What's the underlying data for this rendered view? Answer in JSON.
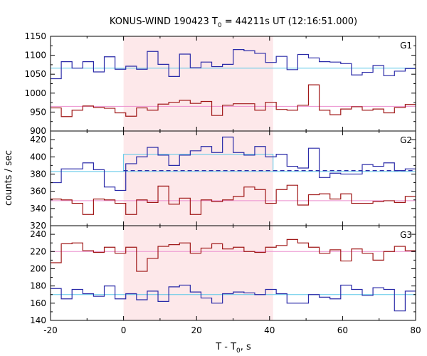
{
  "chart_data": {
    "type": "line",
    "title": "KONUS-WIND 190423 T",
    "title_sub": "0",
    "title_rest": " = 44211s UT (12:16:51.000)",
    "xlabel": "T - T",
    "xlabel_sub": "0",
    "xlabel_rest": ", s",
    "ylabel": "counts / sec",
    "xlim": [
      -20,
      80
    ],
    "x_ticks": [
      -20,
      0,
      20,
      40,
      60,
      80
    ],
    "x_tick_labels": [
      "-20",
      "0",
      "20",
      "40",
      "60",
      "80"
    ],
    "shaded_interval": [
      0,
      40.96
    ],
    "shade_color": "#fde8ea",
    "step": 2.944,
    "grid": false,
    "panels": [
      {
        "name": "G1",
        "ylim": [
          900,
          1150
        ],
        "y_ticks": [
          900,
          950,
          1000,
          1050,
          1100,
          1150
        ],
        "y_tick_labels": [
          "900",
          "950",
          "1000",
          "1050",
          "1100",
          "1150"
        ],
        "series": [
          {
            "color": "#2a2aa8",
            "x_start": -20,
            "baseline": 1066,
            "baseline_color": "#5bc8e8",
            "values": [
              1038,
              1083,
              1066,
              1083,
              1056,
              1096,
              1063,
              1071,
              1063,
              1110,
              1076,
              1044,
              1103,
              1067,
              1082,
              1070,
              1076,
              1115,
              1112,
              1105,
              1081,
              1097,
              1062,
              1102,
              1093,
              1083,
              1082,
              1078,
              1048,
              1055,
              1073,
              1046,
              1058,
              1065,
              1075
            ]
          },
          {
            "color": "#a01818",
            "x_start": -20,
            "baseline": 965,
            "baseline_color": "#ec8fcf",
            "values": [
              961,
              938,
              955,
              966,
              962,
              960,
              948,
              939,
              961,
              955,
              971,
              976,
              981,
              973,
              978,
              941,
              968,
              972,
              972,
              955,
              976,
              957,
              955,
              968,
              1022,
              955,
              943,
              958,
              964,
              955,
              958,
              948,
              962,
              970,
              947
            ]
          }
        ]
      },
      {
        "name": "G2",
        "ylim": [
          320,
          430
        ],
        "y_ticks": [
          320,
          340,
          360,
          380,
          400,
          420
        ],
        "y_tick_labels": [
          "320",
          "340",
          "360",
          "380",
          "400",
          "420"
        ],
        "series": [
          {
            "color": "#2a2aa8",
            "x_start": -20,
            "baseline": 383,
            "baseline_color": "#5bc8e8",
            "interval_mean": 403,
            "interval_mean_color": "#5bc8e8",
            "post_level": 384,
            "values": [
              370,
              386,
              386,
              393,
              385,
              365,
              361,
              392,
              400,
              411,
              402,
              390,
              402,
              407,
              412,
              405,
              423,
              405,
              402,
              412,
              400,
              403,
              389,
              387,
              410,
              376,
              381,
              380,
              380,
              391,
              389,
              393,
              384,
              386,
              388
            ]
          },
          {
            "color": "#a01818",
            "x_start": -20,
            "baseline": 349,
            "baseline_color": "#ec8fcf",
            "values": [
              351,
              350,
              346,
              333,
              351,
              350,
              346,
              333,
              350,
              347,
              366,
              345,
              352,
              333,
              350,
              348,
              350,
              354,
              365,
              362,
              346,
              362,
              367,
              344,
              356,
              357,
              351,
              357,
              346,
              346,
              348,
              349,
              347,
              354,
              365,
              346
            ]
          }
        ]
      },
      {
        "name": "G3",
        "ylim": [
          140,
          250
        ],
        "y_ticks": [
          140,
          160,
          180,
          200,
          220,
          240
        ],
        "y_tick_labels": [
          "140",
          "160",
          "180",
          "200",
          "220",
          "240"
        ],
        "series": [
          {
            "color": "#a01818",
            "x_start": -20,
            "baseline": 220,
            "baseline_color": "#ec8fcf",
            "values": [
              207,
              229,
              230,
              221,
              219,
              225,
              218,
              225,
              197,
              212,
              226,
              228,
              230,
              218,
              224,
              229,
              223,
              225,
              220,
              219,
              225,
              227,
              234,
              230,
              225,
              218,
              222,
              209,
              223,
              218,
              210,
              220,
              226,
              221,
              229
            ]
          },
          {
            "color": "#2a2aa8",
            "x_start": -20,
            "baseline": 170,
            "baseline_color": "#5bc8e8",
            "values": [
              177,
              165,
              176,
              171,
              168,
              180,
              165,
              171,
              164,
              174,
              162,
              179,
              181,
              173,
              166,
              160,
              171,
              173,
              172,
              170,
              176,
              171,
              160,
              160,
              170,
              167,
              165,
              181,
              176,
              169,
              178,
              176,
              151,
              174,
              180,
              167,
              170
            ]
          }
        ]
      }
    ]
  }
}
